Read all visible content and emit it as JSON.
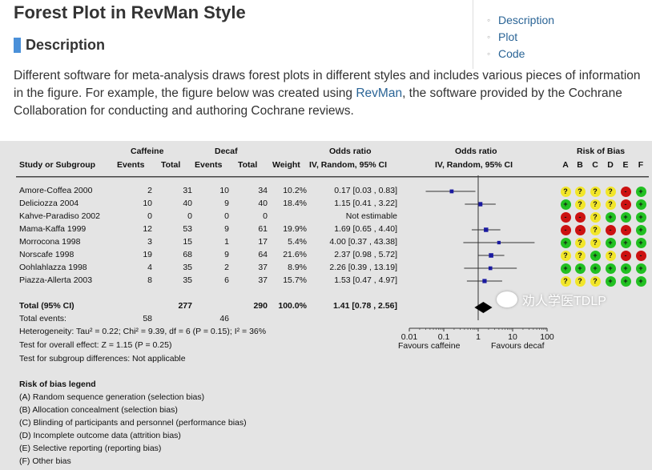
{
  "page": {
    "title": "Forest Plot in RevMan Style",
    "section_title": "Description",
    "desc_part1": "Different software for meta-analysis draws forest plots in different styles and includes various pieces of information in the figure. For example, the figure below was created using ",
    "desc_link": "RevMan",
    "desc_part2": ", the software provided by the Cochrane Collaboration for conducting and authoring Cochrane reviews."
  },
  "toc": [
    "Description",
    "Plot",
    "Code"
  ],
  "table": {
    "headers": {
      "study": "Study or Subgroup",
      "caffeine": "Caffeine",
      "decaf": "Decaf",
      "events": "Events",
      "total": "Total",
      "weight": "Weight",
      "or1": "Odds ratio",
      "or2": "IV, Random, 95% CI",
      "orplot1": "Odds ratio",
      "orplot2": "IV, Random, 95% CI",
      "rob": "Risk of Bias",
      "rob_letters": [
        "A",
        "B",
        "C",
        "D",
        "E",
        "F"
      ]
    },
    "rows": [
      {
        "study": "Amore-Coffea 2000",
        "ce": "2",
        "ct": "31",
        "de": "10",
        "dt": "34",
        "w": "10.2%",
        "ci": "0.17 [0.03 , 0.83]",
        "or": 0.17,
        "lo": 0.03,
        "hi": 0.83,
        "wt": 10.2,
        "rob": [
          "?",
          "?",
          "?",
          "?",
          "-",
          "+"
        ]
      },
      {
        "study": "Deliciozza 2004",
        "ce": "10",
        "ct": "40",
        "de": "9",
        "dt": "40",
        "w": "18.4%",
        "ci": "1.15 [0.41 , 3.22]",
        "or": 1.15,
        "lo": 0.41,
        "hi": 3.22,
        "wt": 18.4,
        "rob": [
          "+",
          "?",
          "?",
          "?",
          "-",
          "+"
        ]
      },
      {
        "study": "Kahve-Paradiso 2002",
        "ce": "0",
        "ct": "0",
        "de": "0",
        "dt": "0",
        "w": "",
        "ci": "Not estimable",
        "or": null,
        "lo": null,
        "hi": null,
        "wt": 0,
        "rob": [
          "-",
          "-",
          "?",
          "+",
          "+",
          "+"
        ]
      },
      {
        "study": "Mama-Kaffa 1999",
        "ce": "12",
        "ct": "53",
        "de": "9",
        "dt": "61",
        "w": "19.9%",
        "ci": "1.69 [0.65 , 4.40]",
        "or": 1.69,
        "lo": 0.65,
        "hi": 4.4,
        "wt": 19.9,
        "rob": [
          "-",
          "-",
          "?",
          "-",
          "-",
          "+"
        ]
      },
      {
        "study": "Morrocona 1998",
        "ce": "3",
        "ct": "15",
        "de": "1",
        "dt": "17",
        "w": "5.4%",
        "ci": "4.00 [0.37 , 43.38]",
        "or": 4.0,
        "lo": 0.37,
        "hi": 43.38,
        "wt": 5.4,
        "rob": [
          "+",
          "?",
          "?",
          "+",
          "+",
          "+"
        ]
      },
      {
        "study": "Norscafe 1998",
        "ce": "19",
        "ct": "68",
        "de": "9",
        "dt": "64",
        "w": "21.6%",
        "ci": "2.37 [0.98 , 5.72]",
        "or": 2.37,
        "lo": 0.98,
        "hi": 5.72,
        "wt": 21.6,
        "rob": [
          "?",
          "?",
          "+",
          "?",
          "-",
          "-"
        ]
      },
      {
        "study": "Oohlahlazza 1998",
        "ce": "4",
        "ct": "35",
        "de": "2",
        "dt": "37",
        "w": "8.9%",
        "ci": "2.26 [0.39 , 13.19]",
        "or": 2.26,
        "lo": 0.39,
        "hi": 13.19,
        "wt": 8.9,
        "rob": [
          "+",
          "+",
          "+",
          "+",
          "+",
          "+"
        ]
      },
      {
        "study": "Piazza-Allerta 2003",
        "ce": "8",
        "ct": "35",
        "de": "6",
        "dt": "37",
        "w": "15.7%",
        "ci": "1.53 [0.47 , 4.97]",
        "or": 1.53,
        "lo": 0.47,
        "hi": 4.97,
        "wt": 15.7,
        "rob": [
          "?",
          "?",
          "?",
          "+",
          "+",
          "+"
        ]
      }
    ],
    "total": {
      "label": "Total (95% CI)",
      "ct": "277",
      "dt": "290",
      "w": "100.0%",
      "ci": "1.41 [0.78 , 2.56]",
      "or": 1.41,
      "lo": 0.78,
      "hi": 2.56
    },
    "total_events": {
      "label": "Total events:",
      "ce": "58",
      "de": "46"
    },
    "heterogeneity": "Heterogeneity: Tau² = 0.22; Chi² = 9.39, df = 6 (P = 0.15); I² = 36%",
    "overall_effect": "Test for overall effect: Z = 1.15 (P = 0.25)",
    "subgroup_diff": "Test for subgroup differences: Not applicable",
    "axis_ticks": [
      "0.01",
      "0.1",
      "1",
      "10",
      "100"
    ],
    "favours_left": "Favours caffeine",
    "favours_right": "Favours decaf"
  },
  "legend": {
    "title": "Risk of bias legend",
    "items": [
      "(A) Random sequence generation (selection bias)",
      "(B) Allocation concealment (selection bias)",
      "(C) Blinding of participants and personnel (performance bias)",
      "(D) Incomplete outcome data (attrition bias)",
      "(E) Selective reporting (reporting bias)",
      "(F) Other bias"
    ]
  },
  "watermark": "劝人学医TDLP",
  "colors": {
    "low": "#22c022",
    "unclear": "#f2e62a",
    "high": "#cc1111",
    "marker": "#1a1aa0"
  }
}
